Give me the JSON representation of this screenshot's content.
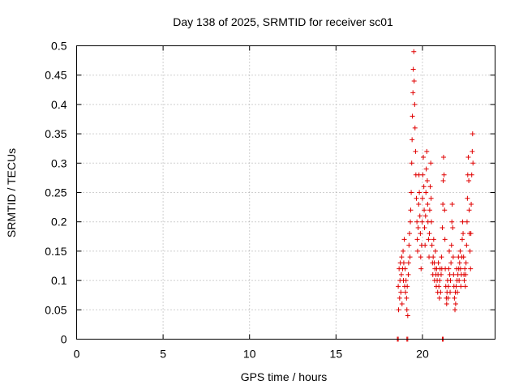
{
  "chart_data": {
    "type": "scatter",
    "title": "Day 138 of 2025, SRMTID for receiver sc01",
    "xlabel": "GPS time / hours",
    "ylabel": "SRMTID / TECUs",
    "xlim": [
      0,
      24.2
    ],
    "ylim": [
      0,
      0.5
    ],
    "xticks": [
      0,
      5,
      10,
      15,
      20
    ],
    "xtick_labels": [
      "0",
      "5",
      "10",
      "15",
      "20"
    ],
    "yticks": [
      0,
      0.05,
      0.1,
      0.15,
      0.2,
      0.25,
      0.3,
      0.35,
      0.4,
      0.45,
      0.5
    ],
    "ytick_labels": [
      "0",
      "0.05",
      "0.1",
      "0.15",
      "0.2",
      "0.25",
      "0.3",
      "0.35",
      "0.4",
      "0.45",
      "0.5"
    ],
    "grid": true,
    "marker": "+",
    "series": [
      {
        "name": "SRMTID",
        "color": "#e00000",
        "points": [
          [
            18.55,
            0
          ],
          [
            18.6,
            0
          ],
          [
            19.1,
            0
          ],
          [
            19.15,
            0
          ],
          [
            21.15,
            0
          ],
          [
            21.2,
            0
          ],
          [
            18.6,
            0.09
          ],
          [
            18.62,
            0.05
          ],
          [
            18.65,
            0.12
          ],
          [
            18.68,
            0.07
          ],
          [
            18.7,
            0.1
          ],
          [
            18.72,
            0.13
          ],
          [
            18.75,
            0.08
          ],
          [
            18.78,
            0.11
          ],
          [
            18.8,
            0.14
          ],
          [
            18.82,
            0.06
          ],
          [
            18.85,
            0.12
          ],
          [
            18.88,
            0.15
          ],
          [
            18.9,
            0.1
          ],
          [
            18.92,
            0.13
          ],
          [
            18.95,
            0.17
          ],
          [
            18.97,
            0.09
          ],
          [
            19.0,
            0.12
          ],
          [
            19.02,
            0.08
          ],
          [
            19.05,
            0.1
          ],
          [
            19.08,
            0.07
          ],
          [
            19.1,
            0.05
          ],
          [
            19.12,
            0.09
          ],
          [
            19.15,
            0.04
          ],
          [
            19.18,
            0.11
          ],
          [
            19.2,
            0.13
          ],
          [
            19.22,
            0.16
          ],
          [
            19.25,
            0.18
          ],
          [
            19.28,
            0.14
          ],
          [
            19.3,
            0.2
          ],
          [
            19.32,
            0.22
          ],
          [
            19.35,
            0.25
          ],
          [
            19.38,
            0.3
          ],
          [
            19.4,
            0.34
          ],
          [
            19.42,
            0.38
          ],
          [
            19.45,
            0.42
          ],
          [
            19.47,
            0.46
          ],
          [
            19.5,
            0.49
          ],
          [
            19.52,
            0.44
          ],
          [
            19.55,
            0.4
          ],
          [
            19.57,
            0.36
          ],
          [
            19.6,
            0.32
          ],
          [
            19.62,
            0.28
          ],
          [
            19.65,
            0.24
          ],
          [
            19.68,
            0.2
          ],
          [
            19.7,
            0.17
          ],
          [
            19.72,
            0.15
          ],
          [
            19.75,
            0.19
          ],
          [
            19.78,
            0.23
          ],
          [
            19.8,
            0.28
          ],
          [
            19.82,
            0.25
          ],
          [
            19.85,
            0.21
          ],
          [
            19.88,
            0.18
          ],
          [
            19.9,
            0.14
          ],
          [
            19.92,
            0.12
          ],
          [
            19.95,
            0.16
          ],
          [
            19.98,
            0.2
          ],
          [
            20.0,
            0.24
          ],
          [
            20.02,
            0.28
          ],
          [
            20.05,
            0.31
          ],
          [
            20.08,
            0.26
          ],
          [
            20.1,
            0.22
          ],
          [
            20.12,
            0.19
          ],
          [
            20.15,
            0.16
          ],
          [
            20.18,
            0.21
          ],
          [
            20.2,
            0.25
          ],
          [
            20.22,
            0.29
          ],
          [
            20.25,
            0.32
          ],
          [
            20.28,
            0.27
          ],
          [
            20.3,
            0.23
          ],
          [
            20.32,
            0.2
          ],
          [
            20.35,
            0.17
          ],
          [
            20.38,
            0.14
          ],
          [
            20.4,
            0.18
          ],
          [
            20.42,
            0.22
          ],
          [
            20.45,
            0.26
          ],
          [
            20.48,
            0.3
          ],
          [
            20.5,
            0.24
          ],
          [
            20.52,
            0.2
          ],
          [
            20.55,
            0.16
          ],
          [
            20.58,
            0.13
          ],
          [
            20.6,
            0.11
          ],
          [
            20.62,
            0.14
          ],
          [
            20.65,
            0.17
          ],
          [
            20.68,
            0.13
          ],
          [
            20.7,
            0.1
          ],
          [
            20.72,
            0.12
          ],
          [
            20.75,
            0.15
          ],
          [
            20.78,
            0.11
          ],
          [
            20.8,
            0.09
          ],
          [
            20.82,
            0.12
          ],
          [
            20.85,
            0.1
          ],
          [
            20.88,
            0.08
          ],
          [
            20.9,
            0.11
          ],
          [
            20.92,
            0.13
          ],
          [
            20.95,
            0.09
          ],
          [
            20.98,
            0.07
          ],
          [
            21.0,
            0.1
          ],
          [
            21.02,
            0.12
          ],
          [
            21.05,
            0.08
          ],
          [
            21.08,
            0.11
          ],
          [
            21.1,
            0.14
          ],
          [
            21.12,
            0.12
          ],
          [
            21.15,
            0.19
          ],
          [
            21.18,
            0.23
          ],
          [
            21.2,
            0.27
          ],
          [
            21.22,
            0.31
          ],
          [
            21.25,
            0.28
          ],
          [
            21.28,
            0.22
          ],
          [
            21.3,
            0.17
          ],
          [
            21.32,
            0.12
          ],
          [
            21.35,
            0.09
          ],
          [
            21.38,
            0.07
          ],
          [
            21.4,
            0.06
          ],
          [
            21.42,
            0.08
          ],
          [
            21.45,
            0.1
          ],
          [
            21.48,
            0.07
          ],
          [
            21.5,
            0.09
          ],
          [
            21.52,
            0.12
          ],
          [
            21.55,
            0.15
          ],
          [
            21.58,
            0.11
          ],
          [
            21.6,
            0.08
          ],
          [
            21.62,
            0.1
          ],
          [
            21.65,
            0.13
          ],
          [
            21.68,
            0.16
          ],
          [
            21.7,
            0.2
          ],
          [
            21.72,
            0.23
          ],
          [
            21.75,
            0.19
          ],
          [
            21.78,
            0.14
          ],
          [
            21.8,
            0.11
          ],
          [
            21.82,
            0.09
          ],
          [
            21.85,
            0.07
          ],
          [
            21.88,
            0.05
          ],
          [
            21.9,
            0.08
          ],
          [
            21.92,
            0.06
          ],
          [
            21.95,
            0.09
          ],
          [
            21.98,
            0.12
          ],
          [
            22.0,
            0.1
          ],
          [
            22.02,
            0.08
          ],
          [
            22.05,
            0.11
          ],
          [
            22.08,
            0.14
          ],
          [
            22.1,
            0.12
          ],
          [
            22.12,
            0.1
          ],
          [
            22.15,
            0.13
          ],
          [
            22.18,
            0.15
          ],
          [
            22.2,
            0.12
          ],
          [
            22.22,
            0.09
          ],
          [
            22.25,
            0.11
          ],
          [
            22.28,
            0.14
          ],
          [
            22.3,
            0.17
          ],
          [
            22.32,
            0.2
          ],
          [
            22.35,
            0.18
          ],
          [
            22.38,
            0.14
          ],
          [
            22.4,
            0.11
          ],
          [
            22.42,
            0.1
          ],
          [
            22.45,
            0.12
          ],
          [
            22.48,
            0.09
          ],
          [
            22.5,
            0.11
          ],
          [
            22.52,
            0.13
          ],
          [
            22.55,
            0.16
          ],
          [
            22.58,
            0.2
          ],
          [
            22.6,
            0.24
          ],
          [
            22.62,
            0.28
          ],
          [
            22.65,
            0.31
          ],
          [
            22.68,
            0.27
          ],
          [
            22.7,
            0.22
          ],
          [
            22.72,
            0.18
          ],
          [
            22.75,
            0.15
          ],
          [
            22.78,
            0.12
          ],
          [
            22.8,
            0.18
          ],
          [
            22.82,
            0.23
          ],
          [
            22.85,
            0.28
          ],
          [
            22.88,
            0.32
          ],
          [
            22.9,
            0.35
          ],
          [
            22.92,
            0.3
          ]
        ]
      }
    ]
  }
}
